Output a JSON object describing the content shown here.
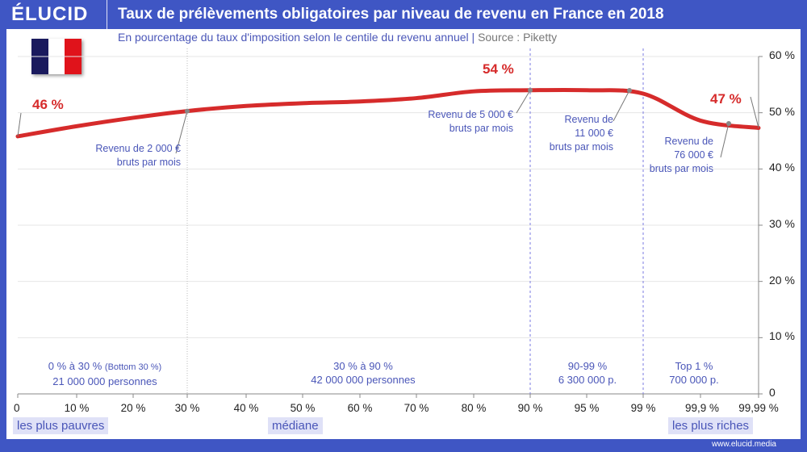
{
  "brand": "ÉLUCID",
  "url": "www.elucid.media",
  "colors": {
    "frame": "#3f56c4",
    "line": "#d62b2b",
    "text": "#4a56b8",
    "flag": [
      "#1a1a5e",
      "#ffffff",
      "#e0131b"
    ]
  },
  "chart_data": {
    "type": "line",
    "title": "Taux de prélèvements obligatoires par niveau de revenu en France en 2018",
    "subtitle": "En pourcentage du taux d'imposition selon le centile du revenu annuel",
    "source": "Source : Piketty",
    "categories": [
      "0",
      "10 %",
      "20 %",
      "30 %",
      "40 %",
      "50 %",
      "60 %",
      "70 %",
      "80 %",
      "90 %",
      "95 %",
      "99 %",
      "99,9 %",
      "99,99 %"
    ],
    "series": [
      {
        "values": [
          45.8,
          47.6,
          49.1,
          50.3,
          51.2,
          51.7,
          52.0,
          52.6,
          53.8,
          54.0,
          54.0,
          53.4,
          48.6,
          47.3
        ]
      }
    ],
    "yticks": [
      "0",
      "10 %",
      "20 %",
      "30 %",
      "40 %",
      "50 %",
      "60 %"
    ],
    "ylim": [
      0,
      60
    ],
    "grid": true,
    "value_labels": {
      "start": "46 %",
      "peak": "54 %",
      "end": "47 %"
    },
    "annotations": [
      {
        "line1": "Revenu de 2 000 €",
        "line2": "bruts par mois"
      },
      {
        "line1": "Revenu de 5 000 €",
        "line2": "bruts par mois"
      },
      {
        "line1": "Revenu de",
        "line2": "11 000 €",
        "line3": "bruts par mois"
      },
      {
        "line1": "Revenu de",
        "line2": "76 000 €",
        "line3": "bruts par mois"
      }
    ],
    "groups": [
      {
        "line1": "0 % à 30 %",
        "small": "(Bottom 30 %)",
        "line2": "21 000 000 personnes"
      },
      {
        "line1": "30 % à 90 %",
        "line2": "42 000 000 personnes"
      },
      {
        "line1": "90-99 %",
        "line2": "6 300 000 p."
      },
      {
        "line1": "Top 1 %",
        "line2": "700 000 p."
      }
    ],
    "tags": {
      "poor": "les plus pauvres",
      "median": "médiane",
      "rich": "les plus riches"
    }
  }
}
